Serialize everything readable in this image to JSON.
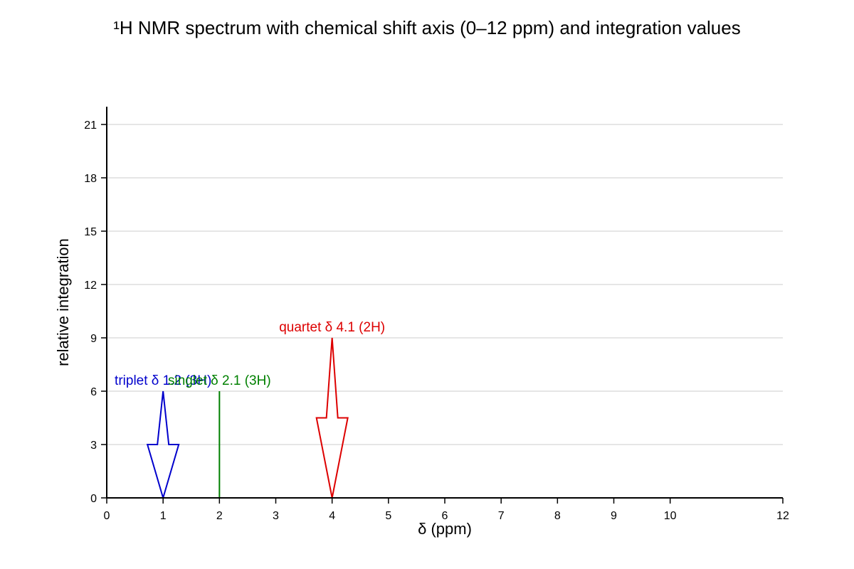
{
  "chart_data": {
    "type": "line",
    "title": "¹H NMR spectrum with chemical shift axis (0–12 ppm) and integration values",
    "xlabel": "δ (ppm)",
    "ylabel": "relative integration",
    "xlim": [
      0,
      12
    ],
    "ylim": [
      0,
      21
    ],
    "x_ticks": [
      0,
      1,
      2,
      3,
      4,
      5,
      6,
      7,
      8,
      9,
      10,
      12
    ],
    "y_ticks": [
      0,
      3,
      6,
      9,
      12,
      15,
      18,
      21
    ],
    "grid": "horizontal",
    "series": [
      {
        "shape": "arrow",
        "shift_ppm": 1.0,
        "integration": 6,
        "label": "triplet δ 1.2 (3H)",
        "color": "#0000cc"
      },
      {
        "shape": "line",
        "shift_ppm": 2.0,
        "integration": 6,
        "label": "singlet δ 2.1 (3H)",
        "color": "#008000"
      },
      {
        "shape": "arrow",
        "shift_ppm": 4.0,
        "integration": 9,
        "label": "quartet δ 4.1 (2H)",
        "color": "#dd0000"
      }
    ]
  }
}
